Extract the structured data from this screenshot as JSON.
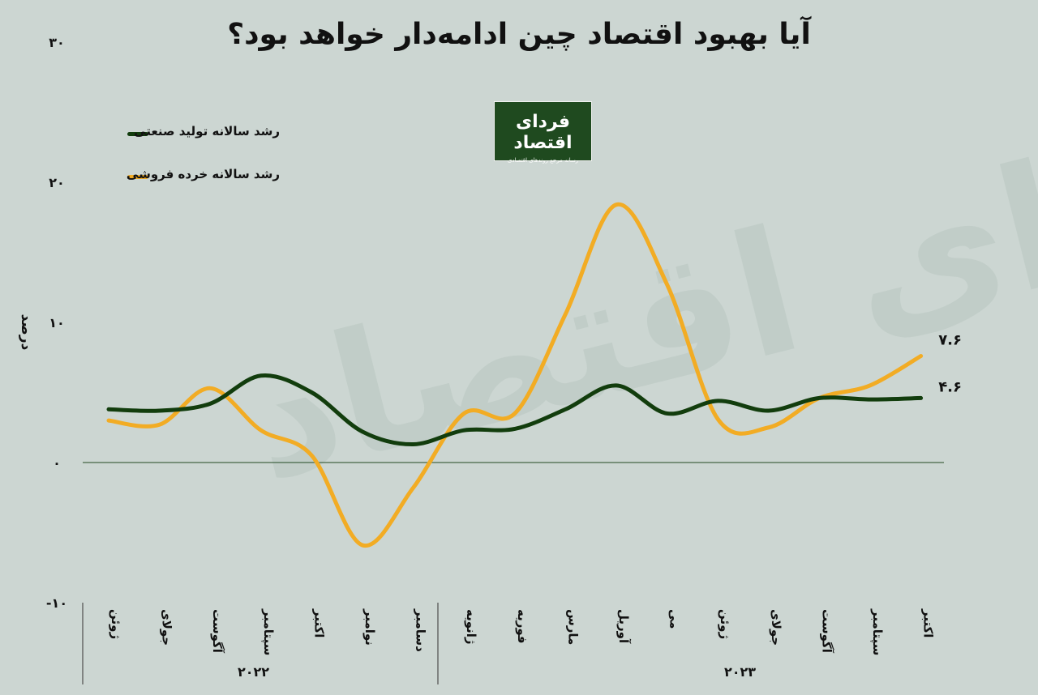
{
  "title": "آیا بهبود اقتصاد چین ادامه‌دار خواهد بود؟",
  "logo": {
    "name": "فردای اقتصاد",
    "tagline": "رسانه مرجع روندهای اقتصادی"
  },
  "watermark": "فردای اقتصاد",
  "colors": {
    "background": "#ccd6d2",
    "industrial": "#123d0d",
    "retail": "#f2ac24"
  },
  "chart_data": {
    "type": "line",
    "ylabel": "درصد",
    "ylim": [
      -10,
      30
    ],
    "yticks": [
      "۳۰",
      "۲۰",
      "۱۰",
      "۰",
      "-۱۰"
    ],
    "ytick_values": [
      30,
      20,
      10,
      0,
      -10
    ],
    "categories": [
      "ژوئن",
      "جولای",
      "آگوست",
      "سپتامبر",
      "اکتبر",
      "نوامبر",
      "دسامبر",
      "ژانویه",
      "فوریه",
      "مارس",
      "آوریل",
      "می",
      "ژوئن",
      "جولای",
      "آگوست",
      "سپتامبر",
      "اکتبر"
    ],
    "year_groups": [
      {
        "label": "۲۰۲۲",
        "start": 0,
        "end": 6
      },
      {
        "label": "۲۰۲۳",
        "start": 7,
        "end": 16
      }
    ],
    "series": [
      {
        "name": "رشد سالانه تولید صنعتی",
        "color": "#123d0d",
        "values": [
          3.8,
          3.7,
          4.2,
          6.2,
          5.0,
          2.2,
          1.3,
          2.3,
          2.4,
          3.8,
          5.5,
          3.5,
          4.4,
          3.7,
          4.6,
          4.5,
          4.6
        ],
        "end_label": "۴.۶"
      },
      {
        "name": "رشد سالانه خرده فروشی",
        "color": "#f2ac24",
        "values": [
          3.0,
          2.7,
          5.3,
          2.3,
          0.5,
          -5.9,
          -1.8,
          3.5,
          3.5,
          10.6,
          18.4,
          12.7,
          3.1,
          2.5,
          4.6,
          5.5,
          7.6
        ],
        "end_label": "۷.۶"
      }
    ]
  }
}
